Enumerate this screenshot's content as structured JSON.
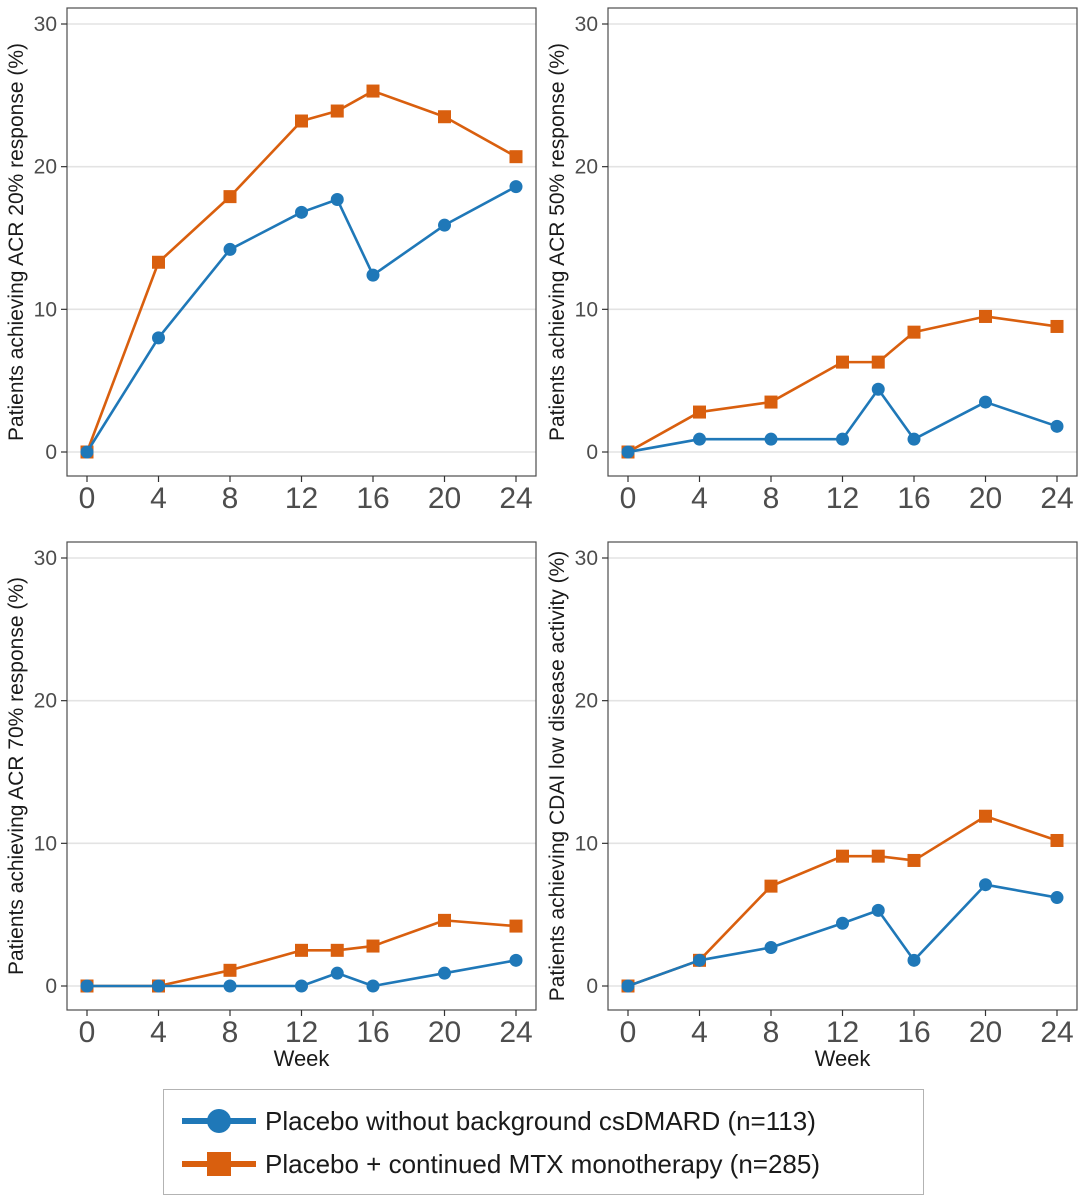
{
  "colors": {
    "placebo_no_bg": "#1f78b8",
    "placebo_mtx": "#d95f0e",
    "grid": "#e3e3e3",
    "axis_text": "#4d4d4d"
  },
  "legend": {
    "items": [
      {
        "label": "Placebo without background csDMARD (n=113)",
        "marker": "circle",
        "color": "#1f78b8"
      },
      {
        "label": "Placebo + continued MTX monotherapy (n=285)",
        "marker": "square",
        "color": "#d95f0e"
      }
    ]
  },
  "chart_data": [
    {
      "type": "line",
      "title": "",
      "xlabel": "",
      "ylabel": "Patients achieving ACR 20% response (%)",
      "x": [
        0,
        4,
        8,
        12,
        14,
        16,
        20,
        24
      ],
      "xticks": [
        0,
        4,
        8,
        12,
        16,
        20,
        24
      ],
      "yticks": [
        0,
        10,
        20,
        30
      ],
      "xlim": [
        0,
        24
      ],
      "ylim": [
        0,
        30
      ],
      "grid": true,
      "series": [
        {
          "name": "Placebo without background csDMARD (n=113)",
          "marker": "circle",
          "color": "#1f78b8",
          "values": [
            0,
            8.0,
            14.2,
            16.8,
            17.7,
            12.4,
            15.9,
            18.6
          ]
        },
        {
          "name": "Placebo + continued MTX monotherapy (n=285)",
          "marker": "square",
          "color": "#d95f0e",
          "values": [
            0,
            13.3,
            17.9,
            23.2,
            23.9,
            25.3,
            23.5,
            20.7
          ]
        }
      ]
    },
    {
      "type": "line",
      "title": "",
      "xlabel": "",
      "ylabel": "Patients achieving ACR 50% response (%)",
      "x": [
        0,
        4,
        8,
        12,
        14,
        16,
        20,
        24
      ],
      "xticks": [
        0,
        4,
        8,
        12,
        16,
        20,
        24
      ],
      "yticks": [
        0,
        10,
        20,
        30
      ],
      "xlim": [
        0,
        24
      ],
      "ylim": [
        0,
        30
      ],
      "grid": true,
      "series": [
        {
          "name": "Placebo without background csDMARD (n=113)",
          "marker": "circle",
          "color": "#1f78b8",
          "values": [
            0,
            0.9,
            0.9,
            0.9,
            4.4,
            0.9,
            3.5,
            1.8
          ]
        },
        {
          "name": "Placebo + continued MTX monotherapy (n=285)",
          "marker": "square",
          "color": "#d95f0e",
          "values": [
            0,
            2.8,
            3.5,
            6.3,
            6.3,
            8.4,
            9.5,
            8.8
          ]
        }
      ]
    },
    {
      "type": "line",
      "title": "",
      "xlabel": "Week",
      "ylabel": "Patients achieving ACR 70% response (%)",
      "x": [
        0,
        4,
        8,
        12,
        14,
        16,
        20,
        24
      ],
      "xticks": [
        0,
        4,
        8,
        12,
        16,
        20,
        24
      ],
      "yticks": [
        0,
        10,
        20,
        30
      ],
      "xlim": [
        0,
        24
      ],
      "ylim": [
        0,
        30
      ],
      "grid": true,
      "series": [
        {
          "name": "Placebo without background csDMARD (n=113)",
          "marker": "circle",
          "color": "#1f78b8",
          "values": [
            0,
            0,
            0,
            0,
            0.9,
            0,
            0.9,
            1.8
          ]
        },
        {
          "name": "Placebo + continued MTX monotherapy (n=285)",
          "marker": "square",
          "color": "#d95f0e",
          "values": [
            0,
            0,
            1.1,
            2.5,
            2.5,
            2.8,
            4.6,
            4.2
          ]
        }
      ]
    },
    {
      "type": "line",
      "title": "",
      "xlabel": "Week",
      "ylabel": "Patients achieving CDAI low disease activity (%)",
      "x": [
        0,
        4,
        8,
        12,
        14,
        16,
        20,
        24
      ],
      "xticks": [
        0,
        4,
        8,
        12,
        16,
        20,
        24
      ],
      "yticks": [
        0,
        10,
        20,
        30
      ],
      "xlim": [
        0,
        24
      ],
      "ylim": [
        0,
        30
      ],
      "grid": true,
      "series": [
        {
          "name": "Placebo without background csDMARD (n=113)",
          "marker": "circle",
          "color": "#1f78b8",
          "values": [
            0,
            1.8,
            2.7,
            4.4,
            5.3,
            1.8,
            7.1,
            6.2
          ]
        },
        {
          "name": "Placebo + continued MTX monotherapy (n=285)",
          "marker": "square",
          "color": "#d95f0e",
          "values": [
            0,
            1.8,
            7.0,
            9.1,
            9.1,
            8.8,
            11.9,
            10.2
          ]
        }
      ]
    }
  ]
}
